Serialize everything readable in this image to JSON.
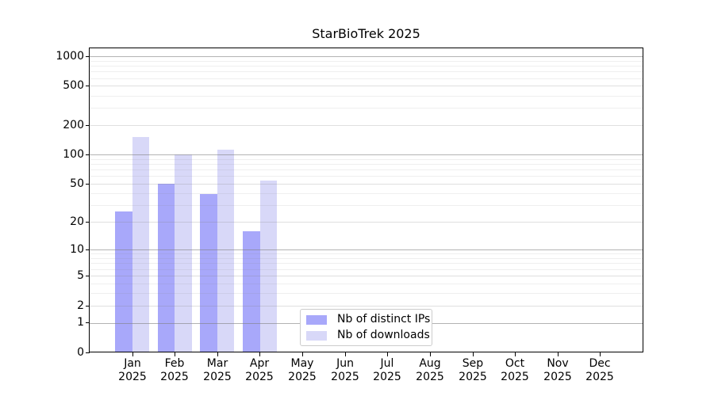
{
  "title": "StarBioTrek 2025",
  "chart_data": {
    "type": "bar",
    "title": "StarBioTrek 2025",
    "scale": "log1p",
    "categories": [
      "Jan 2025",
      "Feb 2025",
      "Mar 2025",
      "Apr 2025",
      "May 2025",
      "Jun 2025",
      "Jul 2025",
      "Aug 2025",
      "Sep 2025",
      "Oct 2025",
      "Nov 2025",
      "Dec 2025"
    ],
    "series": [
      {
        "name": "Nb of distinct IPs",
        "color": "#a8a8fa",
        "values": [
          26,
          50,
          39,
          16,
          0,
          0,
          0,
          0,
          0,
          0,
          0,
          0
        ]
      },
      {
        "name": "Nb of downloads",
        "color": "#d8d8f8",
        "values": [
          150,
          101,
          112,
          54,
          0,
          0,
          0,
          0,
          0,
          0,
          0,
          0
        ]
      }
    ],
    "xlabel": "",
    "ylabel": "",
    "y_ticks": [
      0,
      1,
      2,
      5,
      10,
      20,
      50,
      100,
      200,
      500,
      1000
    ],
    "ylim": [
      0,
      1200
    ],
    "grid": "on",
    "grid_over_bars": true,
    "legend_position": "lower-center",
    "colors": {
      "background": "#ffffff",
      "spine": "#000000",
      "major_grid": "#b0b0b0",
      "minor_grid": "#ececec",
      "legend_border": "#cccccc",
      "text": "#000000"
    }
  }
}
